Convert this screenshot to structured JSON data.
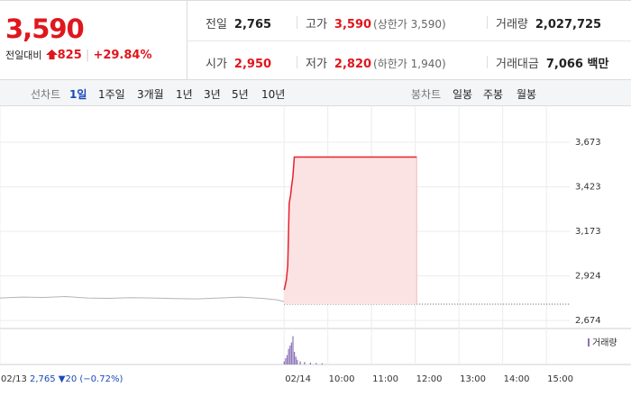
{
  "header": {
    "price": "3,590",
    "change_label": "전일대비",
    "change": "825",
    "change_pct": "+29.84%",
    "stats": [
      [
        {
          "label": "전일",
          "value": "2,765"
        },
        {
          "label": "고가",
          "value": "3,590",
          "note": "(상한가 3,590)"
        },
        {
          "label": "거래량",
          "value": "2,027,725"
        }
      ],
      [
        {
          "label": "시가",
          "value": "2,950"
        },
        {
          "label": "저가",
          "value": "2,820",
          "note": "(하한가 1,940)"
        },
        {
          "label": "거래대금",
          "value": "7,066 백만"
        }
      ]
    ]
  },
  "tabs": {
    "line_label": "선차트",
    "periods": [
      "1일",
      "1주일",
      "3개월",
      "1년",
      "3년",
      "5년",
      "10년"
    ],
    "selected": 0,
    "candle_label": "봉차트",
    "candles": [
      "일봉",
      "주봉",
      "월봉"
    ]
  },
  "chart_data": {
    "type": "line",
    "xlim": [
      -390,
      392
    ],
    "ylim": [
      2629,
      3875
    ],
    "xticks": [
      {
        "value": -390,
        "label": "02/13"
      },
      {
        "value": 0,
        "label": "02/14"
      },
      {
        "value": 60,
        "label": "10:00"
      },
      {
        "value": 120,
        "label": "11:00"
      },
      {
        "value": 180,
        "label": "12:00"
      },
      {
        "value": 240,
        "label": "13:00"
      },
      {
        "value": 300,
        "label": "14:00"
      },
      {
        "value": 360,
        "label": "15:00"
      }
    ],
    "yticks": [
      {
        "value": 2674,
        "label": "2,674"
      },
      {
        "value": 2924,
        "label": "2,924"
      },
      {
        "value": 3173,
        "label": "3,173"
      },
      {
        "value": 3423,
        "label": "3,423"
      },
      {
        "value": 3673,
        "label": "3,673"
      }
    ],
    "prev_close": 2765,
    "annotation": "2,765 ▼20 (−0.72%)",
    "series": [
      {
        "color": "#b4b4b4",
        "x": [
          -390,
          -360,
          -330,
          -300,
          -270,
          -240,
          -210,
          -180,
          -150,
          -120,
          -90,
          -60,
          -30,
          -10,
          0
        ],
        "values": [
          2800,
          2805,
          2803,
          2808,
          2800,
          2798,
          2802,
          2800,
          2797,
          2795,
          2800,
          2805,
          2798,
          2790,
          2780
        ]
      },
      {
        "color": "#e8212b",
        "fill": "#fbe3e4",
        "x": [
          0,
          1,
          3,
          5,
          6,
          7,
          9,
          10,
          12,
          14,
          182
        ],
        "values": [
          2845,
          2860,
          2900,
          2980,
          3150,
          3330,
          3380,
          3420,
          3480,
          3590,
          3590
        ]
      }
    ],
    "volume": {
      "name": "거래량",
      "color": "#8c72b8",
      "y2lim": [
        0,
        100
      ],
      "x": [
        0,
        2,
        4,
        6,
        8,
        10,
        12,
        14,
        16,
        18,
        22,
        28,
        36,
        44,
        52
      ],
      "values": [
        10,
        20,
        30,
        50,
        60,
        70,
        90,
        40,
        25,
        15,
        10,
        8,
        6,
        5,
        4
      ]
    }
  }
}
